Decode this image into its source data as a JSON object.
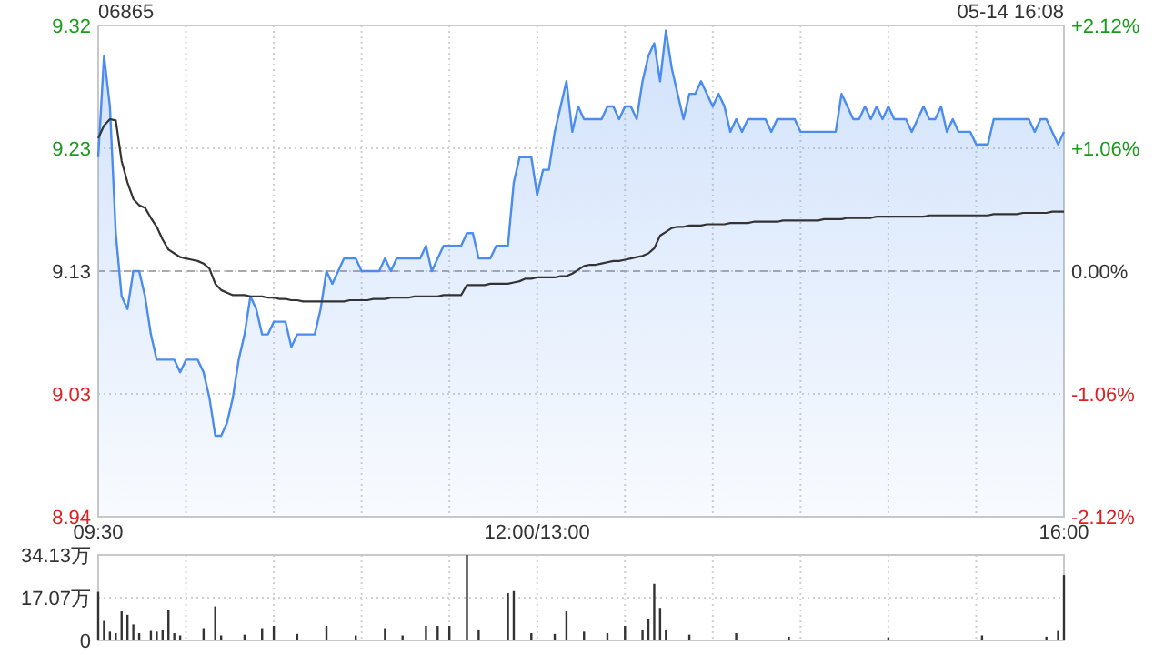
{
  "chart_data": [
    {
      "type": "area",
      "title": "06865",
      "annotations": [
        "05-14 16:08"
      ],
      "grid": true,
      "categories": [
        "09:30",
        null,
        null,
        null,
        null,
        null,
        null,
        null,
        null,
        null,
        null,
        null,
        null,
        null,
        null,
        null,
        null,
        null,
        null,
        null,
        null,
        null,
        null,
        null,
        null,
        null,
        null,
        null,
        null,
        null,
        null,
        null,
        null,
        null,
        null,
        null,
        null,
        null,
        null,
        null,
        null,
        null,
        null,
        null,
        null,
        null,
        null,
        null,
        null,
        null,
        null,
        null,
        null,
        null,
        null,
        null,
        null,
        null,
        null,
        null,
        null,
        null,
        null,
        null,
        null,
        null,
        null,
        null,
        null,
        null,
        null,
        null,
        null,
        null,
        null,
        "12:00/13:00",
        null,
        null,
        null,
        null,
        null,
        null,
        null,
        null,
        null,
        null,
        null,
        null,
        null,
        null,
        null,
        null,
        null,
        null,
        null,
        null,
        null,
        null,
        null,
        null,
        null,
        null,
        null,
        null,
        null,
        null,
        null,
        null,
        null,
        null,
        null,
        null,
        null,
        null,
        null,
        null,
        null,
        null,
        null,
        null,
        null,
        null,
        null,
        null,
        null,
        null,
        null,
        null,
        null,
        null,
        null,
        null,
        null,
        null,
        null,
        null,
        null,
        null,
        null,
        null,
        null,
        null,
        null,
        null,
        null,
        null,
        null,
        null,
        null,
        null,
        null,
        null,
        null,
        null,
        null,
        null,
        null,
        null,
        null,
        null,
        null,
        null,
        null,
        null,
        null,
        "16:00"
      ],
      "ylim": [
        8.936,
        9.324
      ],
      "yticks": [
        {
          "value": 9.324,
          "label": "9.32"
        },
        {
          "value": 9.227,
          "label": "9.23"
        },
        9.13,
        {
          "value": 9.033,
          "label": "9.03"
        },
        {
          "value": 8.936,
          "label": "8.94"
        }
      ],
      "y2lim": [
        -2.12,
        2.12
      ],
      "y2ticks": [
        {
          "value": 2.12,
          "label": "+2.12%"
        },
        {
          "value": 1.06,
          "label": "+1.06%"
        },
        {
          "value": 0,
          "label": "0.00%"
        },
        {
          "value": -1.06,
          "label": "-1.06%"
        },
        {
          "value": -2.12,
          "label": "-2.12%"
        }
      ],
      "ref_lines": [
        {
          "axis": "y",
          "value": 9.13,
          "color": "#aaaaaa",
          "line_style": "dashed"
        }
      ],
      "series": [
        {
          "color": "#4a8cf0",
          "values": [
            9.22,
            9.3,
            9.26,
            9.16,
            9.11,
            9.1,
            9.13,
            9.13,
            9.11,
            9.08,
            9.06,
            9.06,
            9.06,
            9.06,
            9.05,
            9.06,
            9.06,
            9.06,
            9.05,
            9.03,
            9.0,
            9.0,
            9.01,
            9.03,
            9.06,
            9.08,
            9.11,
            9.1,
            9.08,
            9.08,
            9.09,
            9.09,
            9.09,
            9.07,
            9.08,
            9.08,
            9.08,
            9.08,
            9.1,
            9.13,
            9.12,
            9.13,
            9.14,
            9.14,
            9.14,
            9.13,
            9.13,
            9.13,
            9.13,
            9.14,
            9.13,
            9.14,
            9.14,
            9.14,
            9.14,
            9.14,
            9.15,
            9.13,
            9.14,
            9.15,
            9.15,
            9.15,
            9.15,
            9.16,
            9.16,
            9.14,
            9.14,
            9.14,
            9.15,
            9.15,
            9.15,
            9.2,
            9.22,
            9.22,
            9.22,
            9.19,
            9.21,
            9.21,
            9.24,
            9.26,
            9.28,
            9.24,
            9.26,
            9.25,
            9.25,
            9.25,
            9.25,
            9.26,
            9.26,
            9.25,
            9.26,
            9.26,
            9.25,
            9.28,
            9.3,
            9.31,
            9.28,
            9.32,
            9.29,
            9.27,
            9.25,
            9.27,
            9.27,
            9.28,
            9.27,
            9.26,
            9.27,
            9.26,
            9.24,
            9.25,
            9.24,
            9.25,
            9.25,
            9.25,
            9.25,
            9.24,
            9.25,
            9.25,
            9.25,
            9.25,
            9.24,
            9.24,
            9.24,
            9.24,
            9.24,
            9.24,
            9.24,
            9.27,
            9.26,
            9.25,
            9.25,
            9.26,
            9.25,
            9.26,
            9.25,
            9.26,
            9.25,
            9.25,
            9.25,
            9.24,
            9.25,
            9.26,
            9.25,
            9.25,
            9.26,
            9.24,
            9.25,
            9.24,
            9.24,
            9.24,
            9.23,
            9.23,
            9.23,
            9.25,
            9.25,
            9.25,
            9.25,
            9.25,
            9.25,
            9.25,
            9.24,
            9.25,
            9.25,
            9.24,
            9.23,
            9.24
          ]
        },
        {
          "type": "line",
          "color": "#333333",
          "values": [
            9.235,
            9.245,
            9.25,
            9.249,
            9.217,
            9.2,
            9.187,
            9.182,
            9.18,
            9.172,
            9.165,
            9.155,
            9.147,
            9.144,
            9.141,
            9.14,
            9.139,
            9.138,
            9.136,
            9.132,
            9.12,
            9.115,
            9.113,
            9.111,
            9.111,
            9.111,
            9.11,
            9.11,
            9.11,
            9.109,
            9.109,
            9.108,
            9.108,
            9.107,
            9.107,
            9.106,
            9.106,
            9.106,
            9.106,
            9.106,
            9.106,
            9.106,
            9.106,
            9.107,
            9.107,
            9.107,
            9.107,
            9.108,
            9.108,
            9.108,
            9.109,
            9.109,
            9.109,
            9.109,
            9.11,
            9.11,
            9.11,
            9.11,
            9.11,
            9.111,
            9.111,
            9.111,
            9.111,
            9.119,
            9.119,
            9.119,
            9.119,
            9.12,
            9.12,
            9.12,
            9.12,
            9.121,
            9.122,
            9.124,
            9.124,
            9.125,
            9.125,
            9.125,
            9.125,
            9.126,
            9.126,
            9.128,
            9.131,
            9.134,
            9.135,
            9.135,
            9.136,
            9.137,
            9.138,
            9.138,
            9.139,
            9.14,
            9.141,
            9.142,
            9.144,
            9.148,
            9.158,
            9.161,
            9.164,
            9.165,
            9.165,
            9.166,
            9.166,
            9.166,
            9.167,
            9.167,
            9.167,
            9.167,
            9.168,
            9.168,
            9.168,
            9.168,
            9.169,
            9.169,
            9.169,
            9.169,
            9.169,
            9.17,
            9.17,
            9.17,
            9.17,
            9.17,
            9.17,
            9.17,
            9.171,
            9.171,
            9.171,
            9.171,
            9.172,
            9.172,
            9.172,
            9.172,
            9.172,
            9.173,
            9.173,
            9.173,
            9.173,
            9.173,
            9.173,
            9.173,
            9.173,
            9.173,
            9.174,
            9.174,
            9.174,
            9.174,
            9.174,
            9.174,
            9.174,
            9.174,
            9.174,
            9.174,
            9.174,
            9.175,
            9.175,
            9.175,
            9.175,
            9.175,
            9.176,
            9.176,
            9.176,
            9.176,
            9.176,
            9.177,
            9.177,
            9.177
          ]
        }
      ]
    },
    {
      "type": "bar",
      "grid": true,
      "tick_labels": "y",
      "color": "#333333",
      "categories": [
        null,
        null,
        null,
        null,
        null,
        null,
        null,
        null,
        null,
        null,
        null,
        null,
        null,
        null,
        null,
        null,
        null,
        null,
        null,
        null,
        null,
        null,
        null,
        null,
        null,
        null,
        null,
        null,
        null,
        null,
        null,
        null,
        null,
        null,
        null,
        null,
        null,
        null,
        null,
        null,
        null,
        null,
        null,
        null,
        null,
        null,
        null,
        null,
        null,
        null,
        null,
        null,
        null,
        null,
        null,
        null,
        null,
        null,
        null,
        null,
        null,
        null,
        null,
        null,
        null,
        null,
        null,
        null,
        null,
        null,
        null,
        null,
        null,
        null,
        null,
        null,
        null,
        null,
        null,
        null,
        null,
        null,
        null,
        null,
        null,
        null,
        null,
        null,
        null,
        null,
        null,
        null,
        null,
        null,
        null,
        null,
        null,
        null,
        null,
        null,
        null,
        null,
        null,
        null,
        null,
        null,
        null,
        null,
        null,
        null,
        null,
        null,
        null,
        null,
        null,
        null,
        null,
        null,
        null,
        null,
        null,
        null,
        null,
        null,
        null,
        null,
        null,
        null,
        null,
        null,
        null,
        null,
        null,
        null,
        null,
        null,
        null,
        null,
        null,
        null,
        null,
        null,
        null,
        null,
        null,
        null,
        null,
        null,
        null,
        null,
        null,
        null,
        null,
        null,
        null,
        null,
        null,
        null,
        null,
        null,
        null,
        null,
        null,
        null,
        null,
        null
      ],
      "ylim": [
        0,
        34.13
      ],
      "yticks": [
        {
          "value": 34.13,
          "label": "34.13万"
        },
        {
          "value": 17.07,
          "label": "17.07万"
        },
        0
      ],
      "values": [
        19.4,
        7.8,
        3.5,
        2.9,
        11.6,
        10.2,
        6.4,
        2.9,
        null,
        3.8,
        3.5,
        4.4,
        12.2,
        2.9,
        2.0,
        null,
        null,
        null,
        4.9,
        null,
        13.6,
        2.0,
        null,
        null,
        null,
        2.3,
        null,
        null,
        4.9,
        null,
        5.8,
        null,
        null,
        null,
        2.6,
        null,
        null,
        null,
        null,
        5.8,
        null,
        null,
        null,
        null,
        2.0,
        null,
        null,
        null,
        null,
        4.9,
        null,
        null,
        2.0,
        null,
        null,
        null,
        5.8,
        null,
        5.8,
        null,
        5.8,
        null,
        null,
        34.1,
        null,
        4.4,
        null,
        null,
        null,
        null,
        18.9,
        19.7,
        null,
        null,
        2.9,
        null,
        null,
        null,
        2.6,
        null,
        11.6,
        null,
        null,
        3.5,
        null,
        null,
        null,
        2.9,
        null,
        null,
        5.8,
        null,
        null,
        4.4,
        8.7,
        22.6,
        13.0,
        4.4,
        null,
        null,
        null,
        2.3,
        null,
        null,
        null,
        null,
        null,
        null,
        null,
        2.9,
        null,
        null,
        null,
        null,
        null,
        null,
        null,
        null,
        1.5,
        null,
        null,
        null,
        null,
        null,
        null,
        null,
        null,
        null,
        null,
        null,
        null,
        null,
        null,
        null,
        null,
        1.2,
        null,
        null,
        null,
        null,
        null,
        null,
        null,
        null,
        null,
        null,
        null,
        null,
        null,
        null,
        null,
        2.0,
        null,
        null,
        null,
        null,
        null,
        null,
        null,
        null,
        null,
        null,
        1.5,
        null,
        3.8,
        26.1
      ]
    }
  ]
}
